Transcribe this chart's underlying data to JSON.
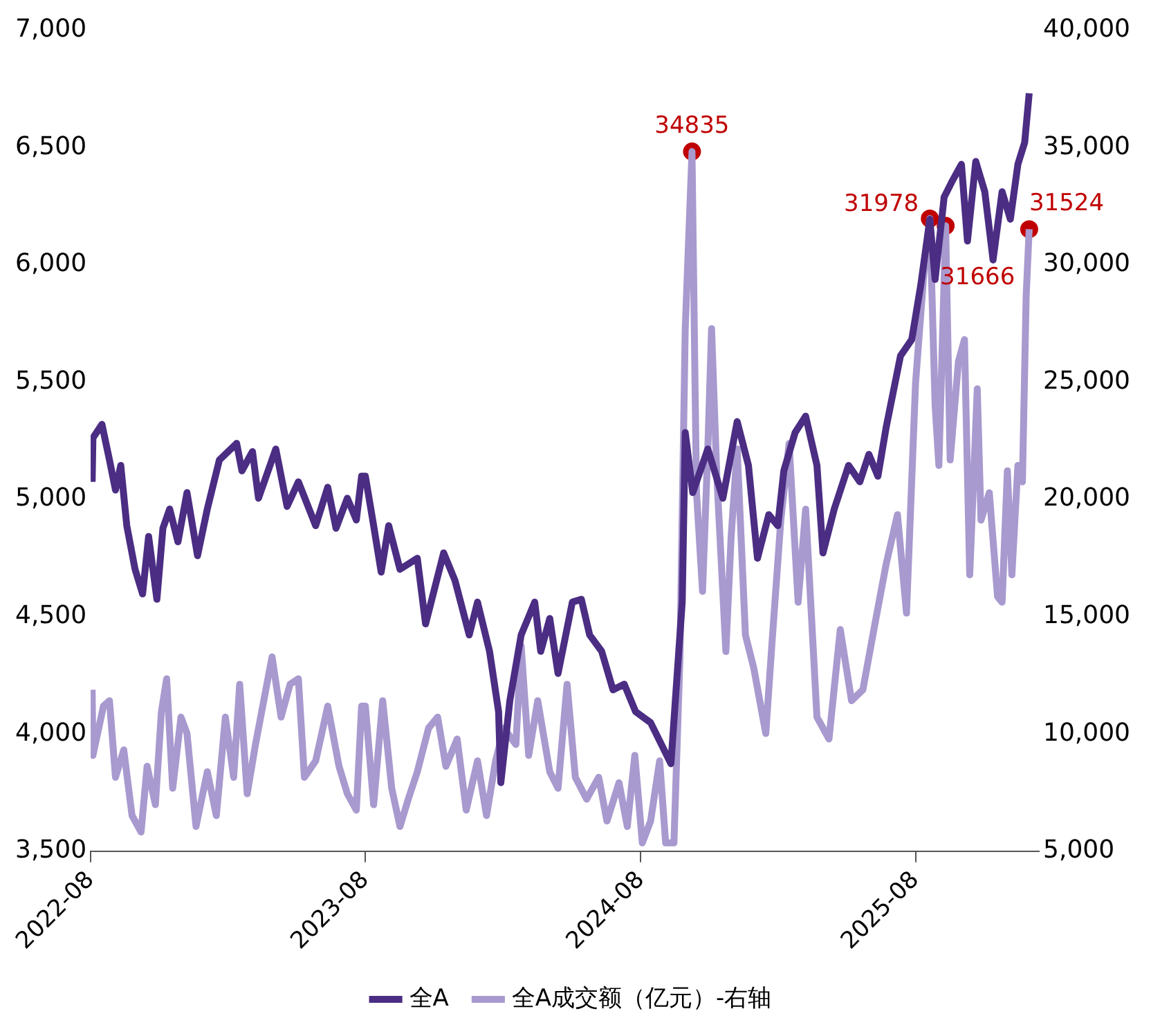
{
  "chart_data": {
    "type": "line",
    "xlim": [
      "2022-08-01",
      "2026-01-12"
    ],
    "xticks": [
      "2022-08",
      "2023-08",
      "2024-08",
      "2025-08"
    ],
    "ylim": [
      3500,
      7000
    ],
    "yticks": [
      {
        "value": 3500,
        "label": "3,500"
      },
      {
        "value": 4000,
        "label": "4,000"
      },
      {
        "value": 4500,
        "label": "4,500"
      },
      {
        "value": 5000,
        "label": "5,000"
      },
      {
        "value": 5500,
        "label": "5,500"
      },
      {
        "value": 6000,
        "label": "6,000"
      },
      {
        "value": 6500,
        "label": "6,500"
      },
      {
        "value": 7000,
        "label": "7,000"
      }
    ],
    "y2lim": [
      5000,
      40000
    ],
    "y2ticks": [
      {
        "value": 5000,
        "label": "5,000"
      },
      {
        "value": 10000,
        "label": "10,000"
      },
      {
        "value": 15000,
        "label": "15,000"
      },
      {
        "value": 20000,
        "label": "20,000"
      },
      {
        "value": 25000,
        "label": "25,000"
      },
      {
        "value": 30000,
        "label": "30,000"
      },
      {
        "value": 35000,
        "label": "35,000"
      },
      {
        "value": 40000,
        "label": "40,000"
      }
    ],
    "legend": "bottom",
    "grid": false,
    "marker": "none",
    "line_style": "solid",
    "series": [
      {
        "name": "全A",
        "color": "#4b2d83",
        "x": [
          "2022-08-03",
          "2022-08-04",
          "2022-08-16",
          "2022-08-26",
          "2022-09-03",
          "2022-09-10",
          "2022-09-18",
          "2022-09-29",
          "2022-10-09",
          "2022-10-17",
          "2022-10-28",
          "2022-11-05",
          "2022-11-14",
          "2022-11-25",
          "2022-12-07",
          "2022-12-21",
          "2023-01-03",
          "2023-01-19",
          "2023-02-11",
          "2023-02-18",
          "2023-03-04",
          "2023-03-12",
          "2023-04-04",
          "2023-04-19",
          "2023-05-04",
          "2023-05-27",
          "2023-06-12",
          "2023-06-23",
          "2023-07-08",
          "2023-07-20",
          "2023-07-27",
          "2023-08-01",
          "2023-08-12",
          "2023-08-22",
          "2023-09-01",
          "2023-09-16",
          "2023-10-09",
          "2023-10-20",
          "2023-11-13",
          "2023-11-28",
          "2023-12-17",
          "2023-12-28",
          "2024-01-13",
          "2024-01-25",
          "2024-01-28",
          "2024-02-09",
          "2024-02-24",
          "2024-03-13",
          "2024-03-21",
          "2024-04-02",
          "2024-04-13",
          "2024-05-02",
          "2024-05-14",
          "2024-05-25",
          "2024-06-10",
          "2024-06-25",
          "2024-07-10",
          "2024-07-25",
          "2024-08-14",
          "2024-09-10",
          "2024-09-25",
          "2024-09-29",
          "2024-10-09",
          "2024-10-29",
          "2024-11-18",
          "2024-12-07",
          "2024-12-22",
          "2025-01-03",
          "2025-01-18",
          "2025-01-30",
          "2025-02-07",
          "2025-02-22",
          "2025-03-08",
          "2025-03-23",
          "2025-03-31",
          "2025-04-15",
          "2025-05-04",
          "2025-05-19",
          "2025-05-31",
          "2025-06-12",
          "2025-06-23",
          "2025-07-12",
          "2025-07-27",
          "2025-08-08",
          "2025-08-20",
          "2025-08-27",
          "2025-09-08",
          "2025-09-19",
          "2025-10-01",
          "2025-10-09",
          "2025-10-20",
          "2025-11-01",
          "2025-11-12",
          "2025-11-24",
          "2025-12-05",
          "2025-12-15",
          "2025-12-24",
          "2025-12-30"
        ],
        "values": [
          5075,
          5262,
          5320,
          5168,
          5040,
          5145,
          4888,
          4702,
          4597,
          4842,
          4574,
          4877,
          4959,
          4819,
          5029,
          4760,
          4959,
          5168,
          5239,
          5122,
          5204,
          5005,
          5215,
          4970,
          5075,
          4888,
          5052,
          4877,
          5005,
          4912,
          5099,
          5099,
          4888,
          4690,
          4888,
          4702,
          4749,
          4469,
          4772,
          4655,
          4422,
          4562,
          4352,
          4095,
          3792,
          4142,
          4422,
          4562,
          4352,
          4492,
          4258,
          4562,
          4574,
          4422,
          4352,
          4188,
          4212,
          4095,
          4048,
          3873,
          4562,
          5285,
          5029,
          5215,
          5005,
          5332,
          5145,
          4749,
          4935,
          4888,
          5122,
          5285,
          5355,
          5145,
          4772,
          4959,
          5145,
          5075,
          5192,
          5099,
          5308,
          5612,
          5682,
          5915,
          6195,
          5938,
          6289,
          6359,
          6429,
          6102,
          6441,
          6312,
          6021,
          6312,
          6195,
          6429,
          6522,
          6732
        ]
      },
      {
        "name": "全A成交额（亿元）-右轴",
        "color": "#a899cf",
        "axis": "y2",
        "x": [
          "2022-08-03",
          "2022-08-04",
          "2022-08-18",
          "2022-08-26",
          "2022-09-03",
          "2022-09-14",
          "2022-09-25",
          "2022-10-07",
          "2022-10-15",
          "2022-10-26",
          "2022-11-03",
          "2022-11-10",
          "2022-11-18",
          "2022-11-29",
          "2022-12-07",
          "2022-12-19",
          "2023-01-03",
          "2023-01-15",
          "2023-01-27",
          "2023-02-07",
          "2023-02-15",
          "2023-02-25",
          "2023-03-08",
          "2023-03-19",
          "2023-03-30",
          "2023-04-11",
          "2023-04-23",
          "2023-05-04",
          "2023-05-12",
          "2023-05-27",
          "2023-06-12",
          "2023-06-27",
          "2023-07-08",
          "2023-07-20",
          "2023-07-27",
          "2023-08-01",
          "2023-08-12",
          "2023-08-24",
          "2023-09-05",
          "2023-09-16",
          "2023-09-27",
          "2023-10-09",
          "2023-10-24",
          "2023-11-05",
          "2023-11-16",
          "2023-12-01",
          "2023-12-13",
          "2023-12-28",
          "2024-01-09",
          "2024-01-21",
          "2024-02-01",
          "2024-02-17",
          "2024-02-24",
          "2024-03-05",
          "2024-03-17",
          "2024-04-02",
          "2024-04-13",
          "2024-04-25",
          "2024-05-06",
          "2024-05-21",
          "2024-06-06",
          "2024-06-17",
          "2024-07-03",
          "2024-07-14",
          "2024-07-24",
          "2024-08-03",
          "2024-08-14",
          "2024-08-26",
          "2024-09-03",
          "2024-09-14",
          "2024-09-22",
          "2024-09-29",
          "2024-10-08",
          "2024-10-12",
          "2024-10-14",
          "2024-10-22",
          "2024-10-29",
          "2024-11-03",
          "2024-11-10",
          "2024-11-22",
          "2024-11-29",
          "2024-12-07",
          "2024-12-18",
          "2024-12-29",
          "2025-01-14",
          "2025-01-22",
          "2025-02-03",
          "2025-02-14",
          "2025-02-26",
          "2025-03-08",
          "2025-03-23",
          "2025-04-08",
          "2025-04-23",
          "2025-05-08",
          "2025-05-23",
          "2025-06-08",
          "2025-06-23",
          "2025-07-08",
          "2025-07-20",
          "2025-08-01",
          "2025-08-12",
          "2025-08-20",
          "2025-08-27",
          "2025-09-01",
          "2025-09-10",
          "2025-09-16",
          "2025-09-27",
          "2025-10-05",
          "2025-10-12",
          "2025-10-22",
          "2025-10-27",
          "2025-11-07",
          "2025-11-18",
          "2025-11-24",
          "2025-12-01",
          "2025-12-07",
          "2025-12-15",
          "2025-12-21",
          "2025-12-26",
          "2025-12-30"
        ],
        "values": [
          11883,
          9083,
          11183,
          11416,
          8150,
          9317,
          6517,
          5817,
          8617,
          6983,
          10950,
          12350,
          7683,
          10717,
          10017,
          6050,
          8383,
          6517,
          10717,
          8150,
          12117,
          7450,
          9550,
          11416,
          13283,
          10717,
          12117,
          12350,
          8150,
          8850,
          11183,
          8617,
          7450,
          6750,
          11183,
          11183,
          6983,
          11416,
          7683,
          6050,
          7217,
          8383,
          10250,
          10717,
          8617,
          9783,
          6750,
          8850,
          6517,
          8850,
          10250,
          9550,
          13750,
          9083,
          11416,
          8383,
          7683,
          12117,
          8150,
          7217,
          8150,
          6283,
          7917,
          6050,
          9083,
          5350,
          6283,
          8850,
          5350,
          5350,
          13283,
          27283,
          34835,
          24950,
          20283,
          16083,
          22150,
          27283,
          20983,
          13517,
          18417,
          22150,
          14217,
          12817,
          10017,
          13750,
          19117,
          22383,
          15617,
          19583,
          10717,
          9783,
          14450,
          11416,
          11883,
          14683,
          17250,
          19350,
          15150,
          24950,
          29617,
          31978,
          24017,
          21450,
          31666,
          21683,
          25883,
          26817,
          16783,
          24717,
          19117,
          20283,
          15850,
          15617,
          21217,
          16783,
          21450,
          20750,
          28683,
          31524
        ]
      },
      {
        "type": "scatter",
        "color": "#c00000",
        "axis": "y2",
        "marker": "circle",
        "x": [
          "2024-10-08",
          "2025-08-20",
          "2025-09-10",
          "2025-12-30"
        ],
        "values": [
          34835,
          31978,
          31666,
          31524
        ],
        "value_labels": [
          "34835",
          "31978",
          "31666",
          "31524"
        ]
      }
    ]
  }
}
